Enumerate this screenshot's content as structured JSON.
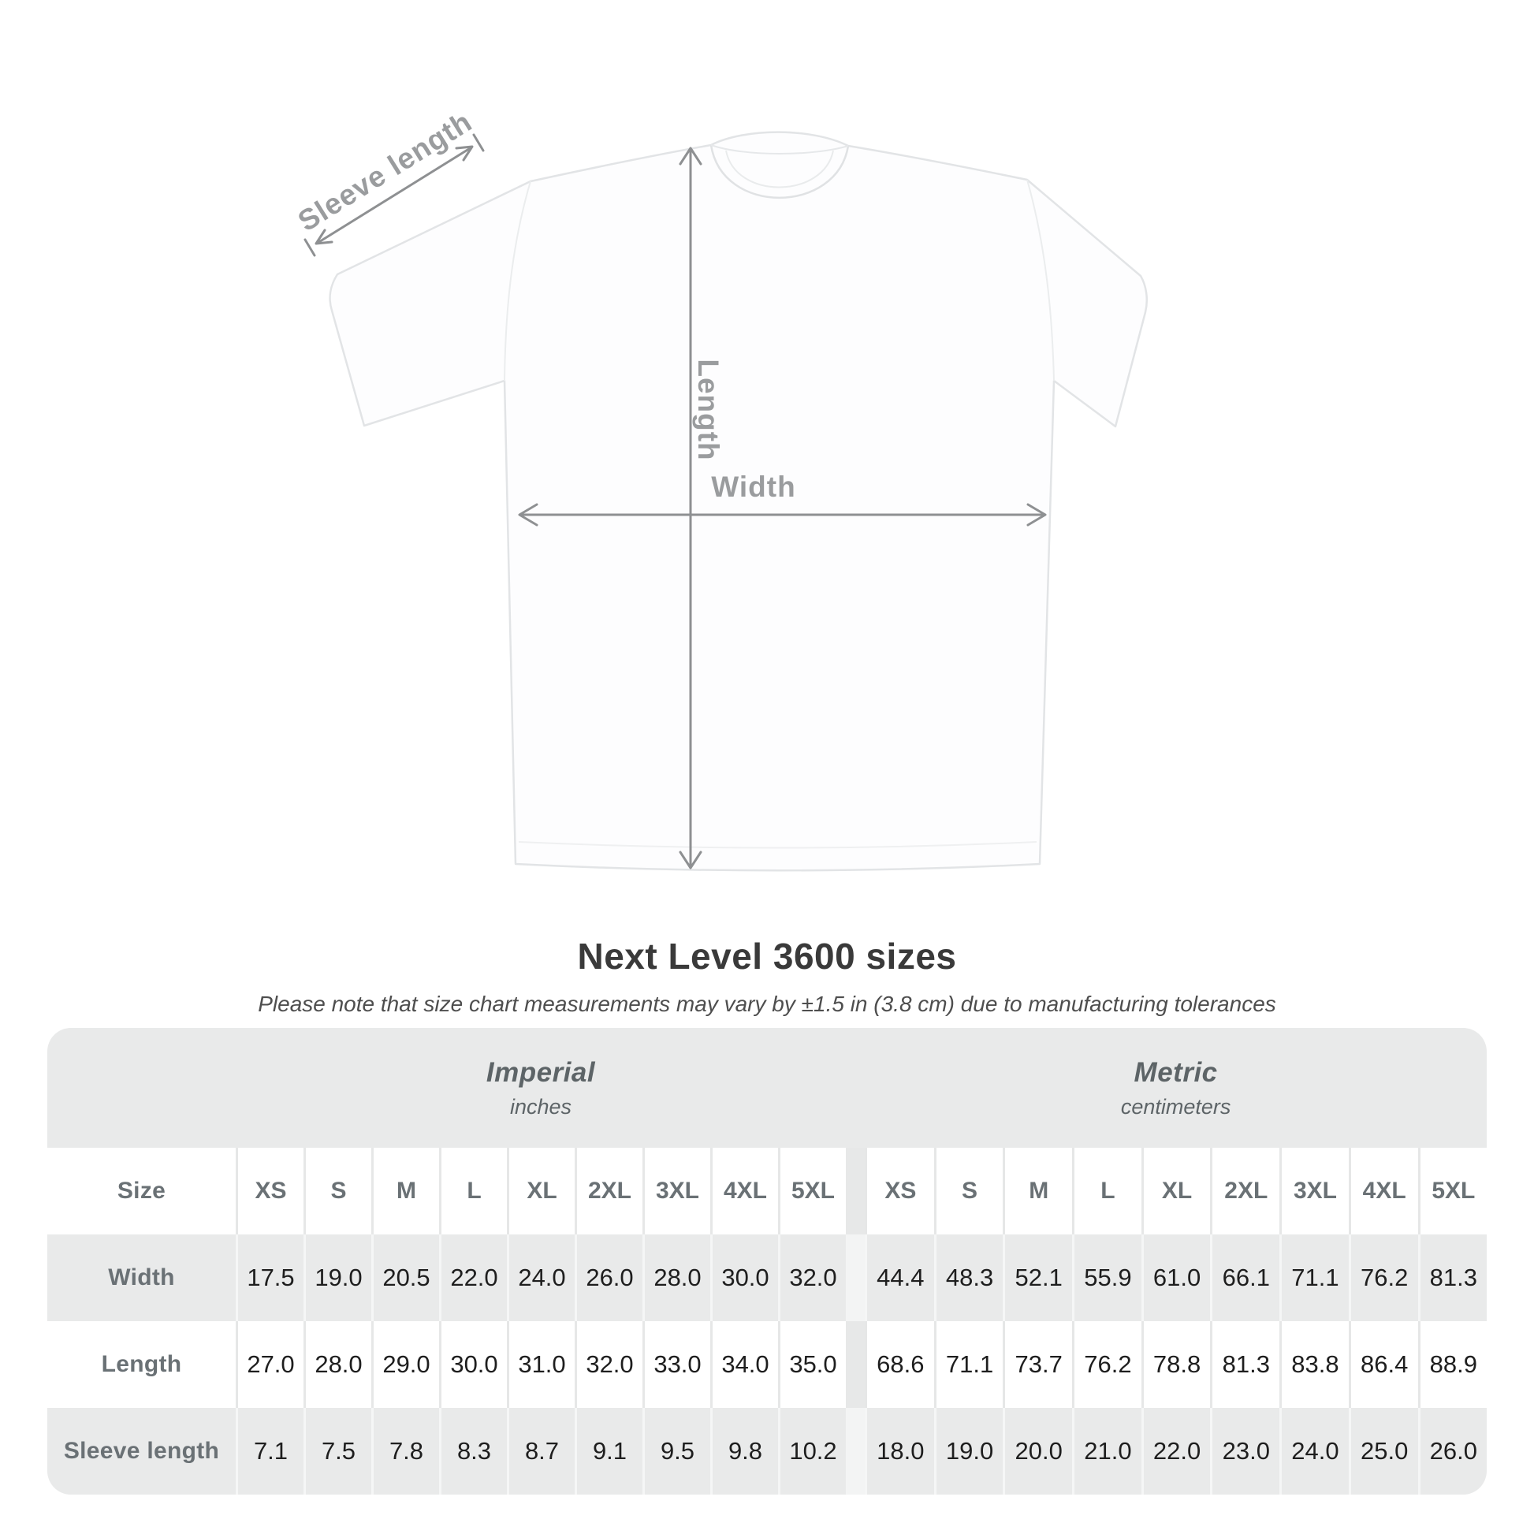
{
  "title": "Next Level 3600 sizes",
  "subtitle": "Please note that size chart measurements may vary by ±1.5 in (3.8 cm) due to manufacturing tolerances",
  "diagram": {
    "sleeve_length_label": "Sleeve length",
    "length_label": "Length",
    "width_label": "Width"
  },
  "colors": {
    "table_background": "#e9eaea",
    "row_white": "#ffffff",
    "label_gray": "#6a7175",
    "header_gray": "#5d6467",
    "number_black": "#1e1e1e",
    "dimension_gray": "#8e9092",
    "title_dark": "#3a3a3a"
  },
  "chart_data": {
    "type": "table",
    "title": "Next Level 3600 sizes",
    "corner_label": "Size",
    "columns": [
      "XS",
      "S",
      "M",
      "L",
      "XL",
      "2XL",
      "3XL",
      "4XL",
      "5XL"
    ],
    "units": [
      {
        "name": "Imperial",
        "unit": "inches"
      },
      {
        "name": "Metric",
        "unit": "centimeters"
      }
    ],
    "rows": [
      {
        "label": "Width",
        "imperial": [
          "17.5",
          "19.0",
          "20.5",
          "22.0",
          "24.0",
          "26.0",
          "28.0",
          "30.0",
          "32.0"
        ],
        "metric": [
          "44.4",
          "48.3",
          "52.1",
          "55.9",
          "61.0",
          "66.1",
          "71.1",
          "76.2",
          "81.3"
        ]
      },
      {
        "label": "Length",
        "imperial": [
          "27.0",
          "28.0",
          "29.0",
          "30.0",
          "31.0",
          "32.0",
          "33.0",
          "34.0",
          "35.0"
        ],
        "metric": [
          "68.6",
          "71.1",
          "73.7",
          "76.2",
          "78.8",
          "81.3",
          "83.8",
          "86.4",
          "88.9"
        ]
      },
      {
        "label": "Sleeve length",
        "imperial": [
          "7.1",
          "7.5",
          "7.8",
          "8.3",
          "8.7",
          "9.1",
          "9.5",
          "9.8",
          "10.2"
        ],
        "metric": [
          "18.0",
          "19.0",
          "20.0",
          "21.0",
          "22.0",
          "23.0",
          "24.0",
          "25.0",
          "26.0"
        ]
      }
    ]
  }
}
